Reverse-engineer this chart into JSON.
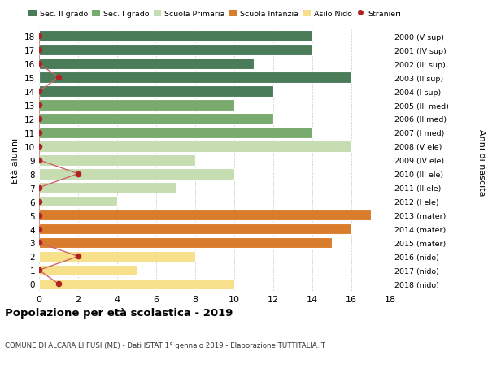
{
  "ages": [
    18,
    17,
    16,
    15,
    14,
    13,
    12,
    11,
    10,
    9,
    8,
    7,
    6,
    5,
    4,
    3,
    2,
    1,
    0
  ],
  "years": [
    "2000 (V sup)",
    "2001 (IV sup)",
    "2002 (III sup)",
    "2003 (II sup)",
    "2004 (I sup)",
    "2005 (III med)",
    "2006 (II med)",
    "2007 (I med)",
    "2008 (V ele)",
    "2009 (IV ele)",
    "2010 (III ele)",
    "2011 (II ele)",
    "2012 (I ele)",
    "2013 (mater)",
    "2014 (mater)",
    "2015 (mater)",
    "2016 (nido)",
    "2017 (nido)",
    "2018 (nido)"
  ],
  "bar_values": [
    14,
    14,
    11,
    16,
    12,
    10,
    12,
    14,
    16,
    8,
    10,
    7,
    4,
    17,
    16,
    15,
    8,
    5,
    10
  ],
  "bar_colors": [
    "#4a7c59",
    "#4a7c59",
    "#4a7c59",
    "#4a7c59",
    "#4a7c59",
    "#7aab6e",
    "#7aab6e",
    "#7aab6e",
    "#c5ddb0",
    "#c5ddb0",
    "#c5ddb0",
    "#c5ddb0",
    "#c5ddb0",
    "#d97c2b",
    "#d97c2b",
    "#d97c2b",
    "#f7e08a",
    "#f7e08a",
    "#f7e08a"
  ],
  "stranieri_x": [
    0,
    0,
    0,
    1,
    0,
    0,
    0,
    0,
    0,
    0,
    2,
    0,
    0,
    0,
    0,
    0,
    2,
    0,
    1
  ],
  "legend_labels": [
    "Sec. II grado",
    "Sec. I grado",
    "Scuola Primaria",
    "Scuola Infanzia",
    "Asilo Nido",
    "Stranieri"
  ],
  "legend_colors": [
    "#4a7c59",
    "#7aab6e",
    "#c5ddb0",
    "#d97c2b",
    "#f7e08a",
    "#b22222"
  ],
  "title": "Popolazione per età scolastica - 2019",
  "subtitle": "COMUNE DI ALCARA LI FUSI (ME) - Dati ISTAT 1° gennaio 2019 - Elaborazione TUTTITALIA.IT",
  "xlabel": "Età alunni",
  "ylabel_right": "Anni di nascita",
  "bar_height": 0.8,
  "background_color": "#ffffff",
  "grid_color": "#cccccc",
  "stranieri_color": "#b22222",
  "stranieri_line_color": "#cd6666"
}
